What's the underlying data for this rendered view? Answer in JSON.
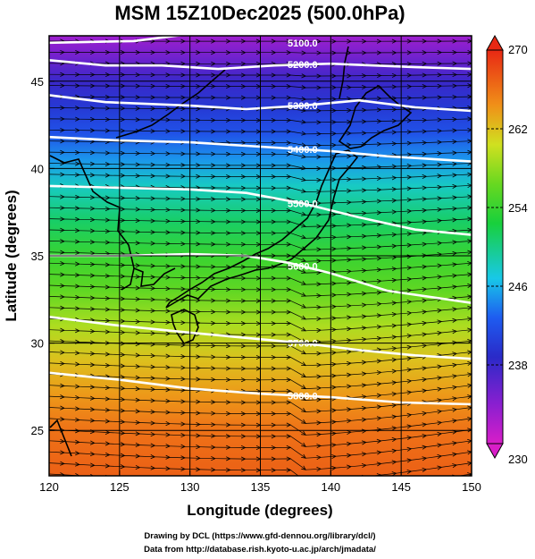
{
  "chart_data": {
    "type": "heatmap",
    "title": "MSM 15Z10Dec2025 (500.0hPa)",
    "xlabel": "Longitude (degrees)",
    "ylabel": "Latitude  (degrees)",
    "xlim": [
      120,
      150
    ],
    "ylim": [
      22.4,
      47.6
    ],
    "xticks": [
      120,
      125,
      130,
      135,
      140,
      145,
      150
    ],
    "yticks": [
      25,
      30,
      35,
      40,
      45
    ],
    "grid": true,
    "colorbar": {
      "range": [
        230,
        270
      ],
      "ticks": [
        230,
        238,
        246,
        254,
        262,
        270
      ],
      "placement": "right"
    },
    "color_field": [
      {
        "lat": 47.6,
        "value": 233
      },
      {
        "lat": 46.5,
        "value": 235
      },
      {
        "lat": 45.0,
        "value": 238
      },
      {
        "lat": 43.5,
        "value": 240
      },
      {
        "lat": 42.0,
        "value": 242
      },
      {
        "lat": 40.5,
        "value": 245
      },
      {
        "lat": 39.0,
        "value": 248
      },
      {
        "lat": 37.0,
        "value": 251
      },
      {
        "lat": 35.0,
        "value": 254
      },
      {
        "lat": 33.0,
        "value": 256
      },
      {
        "lat": 31.0,
        "value": 259
      },
      {
        "lat": 29.0,
        "value": 262
      },
      {
        "lat": 27.0,
        "value": 264
      },
      {
        "lat": 25.0,
        "value": 266
      },
      {
        "lat": 22.4,
        "value": 267
      }
    ],
    "contour_series": [
      {
        "label": "5100.0",
        "points": [
          [
            120,
            47.2
          ],
          [
            126,
            47.3
          ],
          [
            130,
            47.7
          ],
          [
            135,
            48.0
          ]
        ]
      },
      {
        "label": "5200.0",
        "points": [
          [
            120,
            46.2
          ],
          [
            124,
            45.9
          ],
          [
            128,
            45.9
          ],
          [
            132,
            45.7
          ],
          [
            136,
            45.9
          ],
          [
            140,
            46.0
          ],
          [
            146,
            45.8
          ],
          [
            150,
            45.7
          ]
        ]
      },
      {
        "label": "5300.0",
        "points": [
          [
            120,
            44.2
          ],
          [
            124,
            43.8
          ],
          [
            130,
            43.6
          ],
          [
            134,
            43.4
          ],
          [
            138,
            43.6
          ],
          [
            142,
            43.9
          ],
          [
            146,
            43.5
          ],
          [
            150,
            43.3
          ]
        ]
      },
      {
        "label": "5400.0",
        "points": [
          [
            120,
            41.8
          ],
          [
            125,
            41.6
          ],
          [
            130,
            41.5
          ],
          [
            134,
            41.3
          ],
          [
            138,
            41.1
          ],
          [
            140,
            41.0
          ],
          [
            144,
            40.7
          ],
          [
            150,
            40.4
          ]
        ]
      },
      {
        "label": "5500.0",
        "points": [
          [
            120,
            39.0
          ],
          [
            125,
            38.9
          ],
          [
            130,
            38.8
          ],
          [
            134,
            38.6
          ],
          [
            138,
            38.0
          ],
          [
            142,
            37.2
          ],
          [
            146,
            36.5
          ],
          [
            150,
            36.2
          ]
        ]
      },
      {
        "label": "5600.0",
        "points": [
          [
            120,
            35.0
          ],
          [
            125,
            35.0
          ],
          [
            130,
            35.1
          ],
          [
            134,
            35.0
          ],
          [
            137,
            34.6
          ],
          [
            140,
            34.0
          ],
          [
            144,
            33.0
          ],
          [
            150,
            32.3
          ]
        ]
      },
      {
        "label": "5700.0",
        "points": [
          [
            120,
            31.5
          ],
          [
            125,
            31.0
          ],
          [
            130,
            30.6
          ],
          [
            134,
            30.3
          ],
          [
            138,
            30.0
          ],
          [
            142,
            29.6
          ],
          [
            146,
            29.3
          ],
          [
            150,
            29.1
          ]
        ]
      },
      {
        "label": "5800.0",
        "points": [
          [
            120,
            28.3
          ],
          [
            125,
            27.9
          ],
          [
            130,
            27.4
          ],
          [
            135,
            27.1
          ],
          [
            140,
            26.9
          ],
          [
            145,
            26.6
          ],
          [
            150,
            26.5
          ]
        ]
      }
    ],
    "wind_field": "westerly",
    "annotations": [
      "Drawing by DCL (https://www.gfd-dennou.org/library/dcl/)",
      "Data from http://database.rish.kyoto-u.ac.jp/arch/jmadata/"
    ]
  }
}
